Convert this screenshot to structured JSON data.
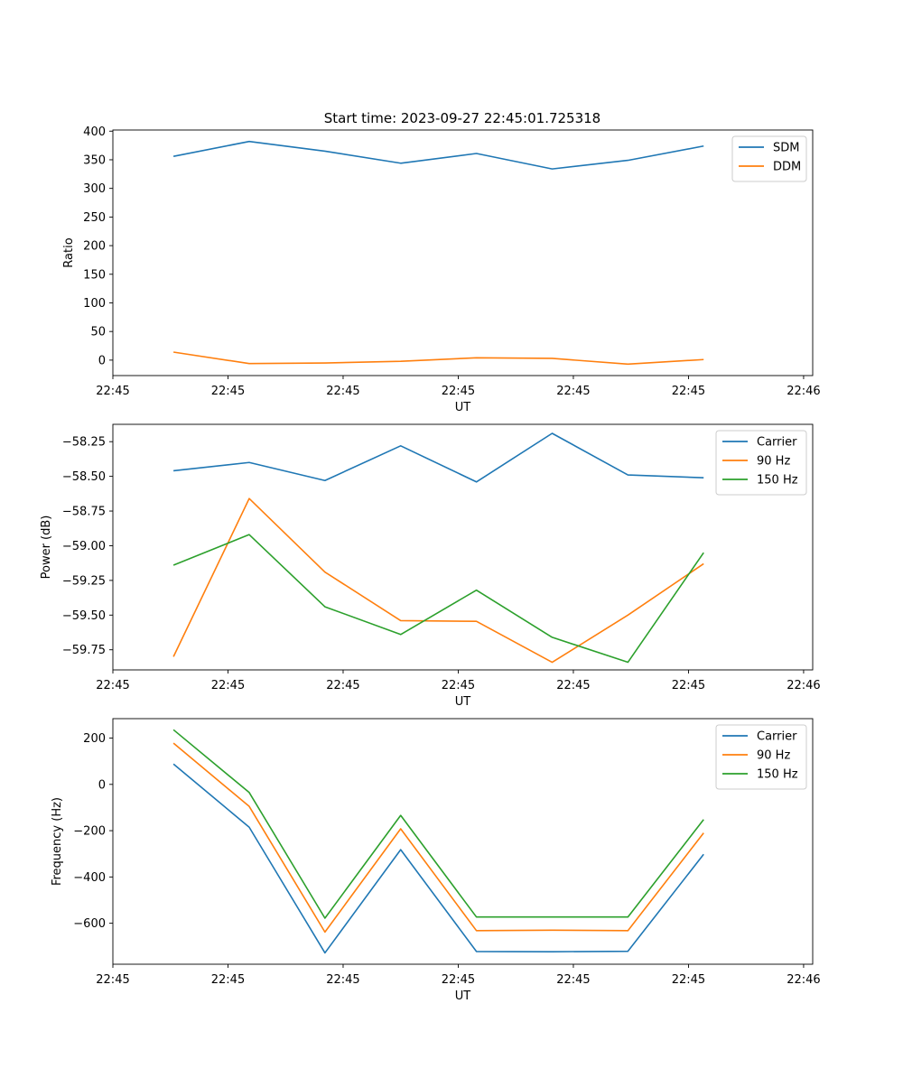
{
  "title": "Start time: 2023-09-27 22:45:01.725318",
  "colors": {
    "blue": "#1f77b4",
    "orange": "#ff7f0e",
    "green": "#2ca02c"
  },
  "chart_data": [
    {
      "type": "line",
      "title": "Start time: 2023-09-27 22:45:01.725318",
      "xlabel": "UT",
      "ylabel": "Ratio",
      "x": [
        1,
        2,
        3,
        4,
        5,
        6,
        7,
        8
      ],
      "xlim": [
        0.2,
        9.44
      ],
      "xticks": [
        0.2,
        1.72,
        3.24,
        4.76,
        6.28,
        7.8,
        9.32
      ],
      "xtick_labels": [
        "22:45",
        "22:45",
        "22:45",
        "22:45",
        "22:45",
        "22:45",
        "22:46"
      ],
      "ylim": [
        -27,
        402
      ],
      "yticks": [
        0,
        50,
        100,
        150,
        200,
        250,
        300,
        350,
        400
      ],
      "ytick_labels": [
        "0",
        "50",
        "100",
        "150",
        "200",
        "250",
        "300",
        "350",
        "400"
      ],
      "legend_position": "top-right",
      "series": [
        {
          "name": "SDM",
          "color": "#1f77b4",
          "values": [
            356,
            382,
            365,
            344,
            361,
            334,
            349,
            374
          ]
        },
        {
          "name": "DDM",
          "color": "#ff7f0e",
          "values": [
            14,
            -6,
            -5,
            -2,
            4,
            3,
            -7,
            1
          ]
        }
      ]
    },
    {
      "type": "line",
      "title": "",
      "xlabel": "UT",
      "ylabel": "Power (dB)",
      "x": [
        1,
        2,
        3,
        4,
        5,
        6,
        7,
        8
      ],
      "xlim": [
        0.2,
        9.44
      ],
      "xticks": [
        0.2,
        1.72,
        3.24,
        4.76,
        6.28,
        7.8,
        9.32
      ],
      "xtick_labels": [
        "22:45",
        "22:45",
        "22:45",
        "22:45",
        "22:45",
        "22:45",
        "22:46"
      ],
      "ylim": [
        -59.895,
        -58.125
      ],
      "yticks": [
        -59.75,
        -59.5,
        -59.25,
        -59.0,
        -58.75,
        -58.5,
        -58.25
      ],
      "ytick_labels": [
        "−59.75",
        "−59.50",
        "−59.25",
        "−59.00",
        "−58.75",
        "−58.50",
        "−58.25"
      ],
      "legend_position": "top-right",
      "series": [
        {
          "name": "Carrier",
          "color": "#1f77b4",
          "values": [
            -58.46,
            -58.4,
            -58.53,
            -58.28,
            -58.54,
            -58.19,
            -58.49,
            -58.51
          ]
        },
        {
          "name": "90 Hz",
          "color": "#ff7f0e",
          "values": [
            -59.8,
            -58.66,
            -59.19,
            -59.54,
            -59.545,
            -59.84,
            -59.5,
            -59.13
          ]
        },
        {
          "name": "150 Hz",
          "color": "#2ca02c",
          "values": [
            -59.14,
            -58.92,
            -59.44,
            -59.64,
            -59.32,
            -59.66,
            -59.84,
            -59.05
          ]
        }
      ]
    },
    {
      "type": "line",
      "title": "",
      "xlabel": "UT",
      "ylabel": "Frequency (Hz)",
      "x": [
        1,
        2,
        3,
        4,
        5,
        6,
        7,
        8
      ],
      "xlim": [
        0.2,
        9.44
      ],
      "xticks": [
        0.2,
        1.72,
        3.24,
        4.76,
        6.28,
        7.8,
        9.32
      ],
      "xtick_labels": [
        "22:45",
        "22:45",
        "22:45",
        "22:45",
        "22:45",
        "22:45",
        "22:46"
      ],
      "ylim": [
        -777,
        284
      ],
      "yticks": [
        -600,
        -400,
        -200,
        0,
        200
      ],
      "ytick_labels": [
        "−600",
        "−400",
        "−200",
        "0",
        "200"
      ],
      "legend_position": "top-right",
      "series": [
        {
          "name": "Carrier",
          "color": "#1f77b4",
          "values": [
            88,
            -185,
            -728,
            -282,
            -722,
            -723,
            -721,
            -302
          ]
        },
        {
          "name": "90 Hz",
          "color": "#ff7f0e",
          "values": [
            178,
            -95,
            -638,
            -192,
            -632,
            -630,
            -632,
            -210
          ]
        },
        {
          "name": "150 Hz",
          "color": "#2ca02c",
          "values": [
            236,
            -35,
            -578,
            -134,
            -573,
            -573,
            -573,
            -152
          ]
        }
      ]
    }
  ]
}
